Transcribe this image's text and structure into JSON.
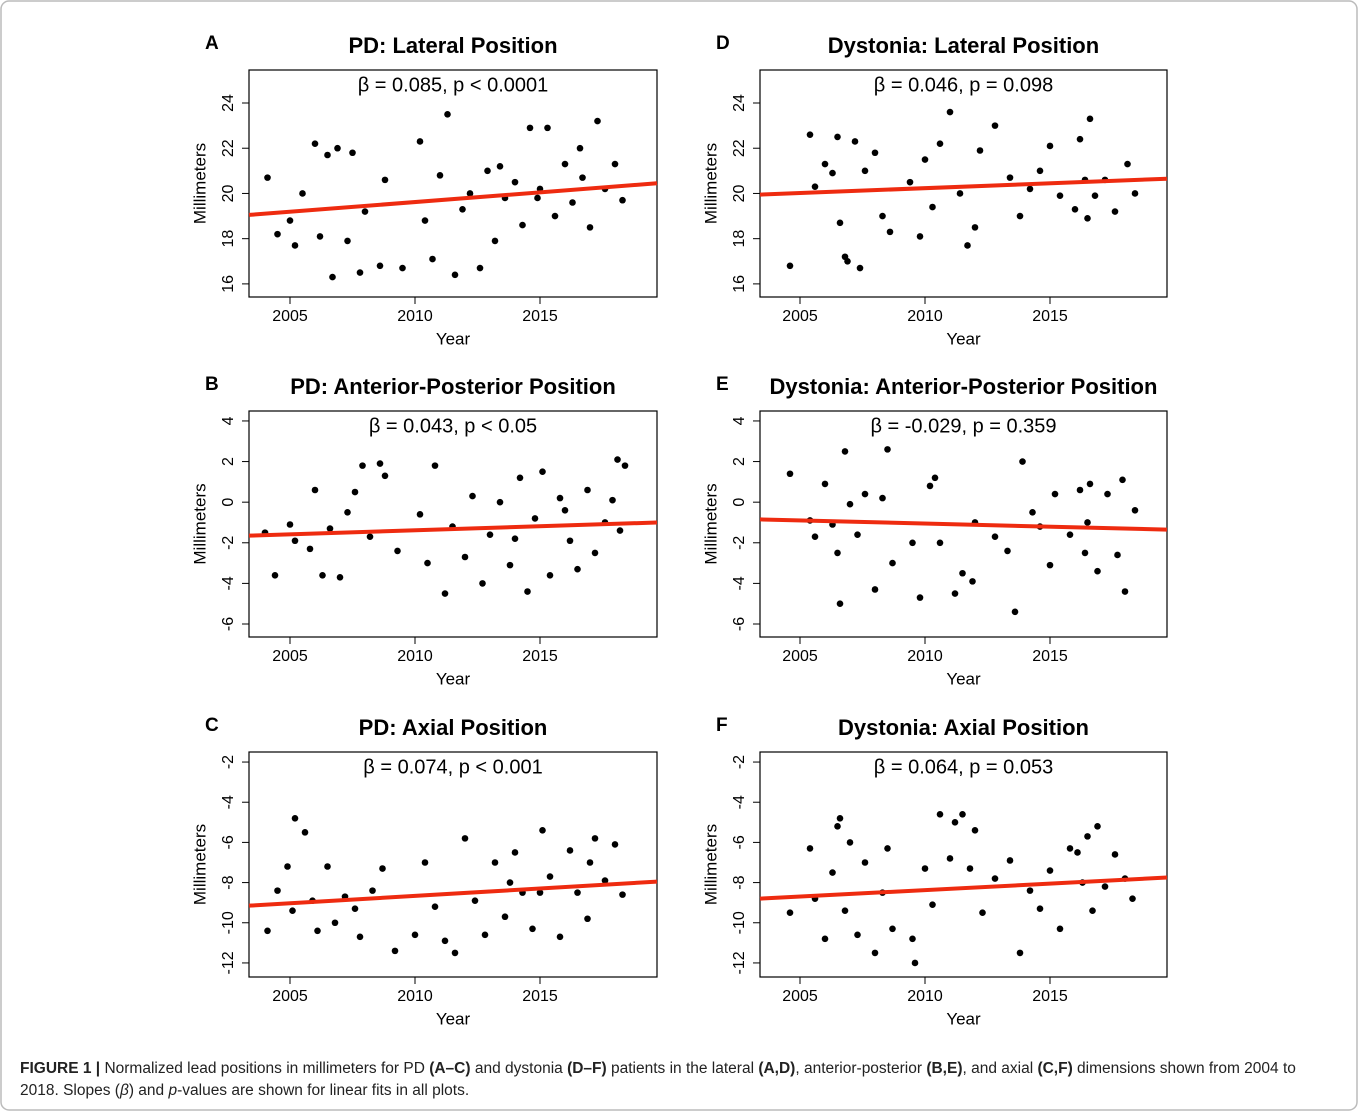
{
  "chart_data": [
    {
      "type": "scatter",
      "panel_label": "A",
      "title": "PD: Lateral Position",
      "annotation": "β = 0.085, p < 0.0001",
      "xlabel": "Year",
      "ylabel": "Millimeters",
      "color": "#000000",
      "xlim": [
        2003.36,
        2019.68
      ],
      "ylim": [
        15.42,
        25.46
      ],
      "xticks": [
        2005,
        2010,
        2015
      ],
      "yticks": [
        16,
        18,
        20,
        22,
        24
      ],
      "x": [
        2004.1,
        2004.5,
        2005.0,
        2005.2,
        2005.5,
        2006.0,
        2006.2,
        2006.5,
        2006.7,
        2006.9,
        2007.3,
        2007.5,
        2007.8,
        2008.0,
        2008.6,
        2008.8,
        2009.5,
        2010.2,
        2010.4,
        2010.7,
        2011.0,
        2011.3,
        2011.6,
        2011.9,
        2012.2,
        2012.6,
        2012.9,
        2013.2,
        2013.6,
        2014.0,
        2014.3,
        2014.6,
        2015.0,
        2015.3,
        2015.6,
        2016.0,
        2016.3,
        2016.7,
        2017.0,
        2017.3,
        2017.6,
        2018.0,
        2018.3,
        2016.6,
        2014.9,
        2013.4
      ],
      "y": [
        20.7,
        18.2,
        18.8,
        17.7,
        20.0,
        22.2,
        18.1,
        21.7,
        16.3,
        22.0,
        17.9,
        21.8,
        16.5,
        19.2,
        16.8,
        20.6,
        16.7,
        22.3,
        18.8,
        17.1,
        20.8,
        23.5,
        16.4,
        19.3,
        20.0,
        16.7,
        21.0,
        17.9,
        19.8,
        20.5,
        18.6,
        22.9,
        20.2,
        22.9,
        19.0,
        21.3,
        19.6,
        20.7,
        18.5,
        23.2,
        20.2,
        21.3,
        19.7,
        22.0,
        19.8,
        21.2
      ],
      "fit": {
        "color": "#ee2b10",
        "x": [
          2003.36,
          2019.68
        ],
        "y": [
          19.05,
          20.45
        ]
      }
    },
    {
      "type": "scatter",
      "panel_label": "B",
      "title": "PD: Anterior-Posterior Position",
      "annotation": "β = 0.043, p < 0.05",
      "xlabel": "Year",
      "ylabel": "Millimeters",
      "color": "#000000",
      "xlim": [
        2003.36,
        2019.68
      ],
      "ylim": [
        -6.64,
        4.49
      ],
      "xticks": [
        2005,
        2010,
        2015
      ],
      "yticks": [
        -6,
        -4,
        -2,
        0,
        2,
        4
      ],
      "x": [
        2004.0,
        2004.4,
        2005.0,
        2005.2,
        2005.8,
        2006.0,
        2006.3,
        2006.6,
        2007.0,
        2007.3,
        2007.6,
        2007.9,
        2008.2,
        2008.6,
        2008.8,
        2009.3,
        2010.2,
        2010.5,
        2010.8,
        2011.2,
        2011.5,
        2012.0,
        2012.3,
        2012.7,
        2013.0,
        2013.4,
        2013.8,
        2014.2,
        2014.5,
        2014.8,
        2015.1,
        2015.4,
        2015.8,
        2016.2,
        2016.5,
        2016.9,
        2017.2,
        2017.6,
        2017.9,
        2018.1,
        2018.4,
        2018.2,
        2016.0,
        2014.0
      ],
      "y": [
        -1.5,
        -3.6,
        -1.1,
        -1.9,
        -2.3,
        0.6,
        -3.6,
        -1.3,
        -3.7,
        -0.5,
        0.5,
        1.8,
        -1.7,
        1.9,
        1.3,
        -2.4,
        -0.6,
        -3.0,
        1.8,
        -4.5,
        -1.2,
        -2.7,
        0.3,
        -4.0,
        -1.6,
        0.0,
        -3.1,
        1.2,
        -4.4,
        -0.8,
        1.5,
        -3.6,
        0.2,
        -1.9,
        -3.3,
        0.6,
        -2.5,
        -1.0,
        0.1,
        2.1,
        1.8,
        -1.4,
        -0.4,
        -1.8
      ],
      "fit": {
        "color": "#ee2b10",
        "x": [
          2003.36,
          2019.68
        ],
        "y": [
          -1.65,
          -1.0
        ]
      }
    },
    {
      "type": "scatter",
      "panel_label": "C",
      "title": "PD: Axial Position",
      "annotation": "β = 0.074, p < 0.001",
      "xlabel": "Year",
      "ylabel": "Millimeters",
      "color": "#000000",
      "xlim": [
        2003.36,
        2019.68
      ],
      "ylim": [
        -12.7,
        -1.5
      ],
      "xticks": [
        2005,
        2010,
        2015
      ],
      "yticks": [
        -12,
        -10,
        -8,
        -6,
        -4,
        -2
      ],
      "x": [
        2004.1,
        2004.5,
        2004.9,
        2005.1,
        2005.2,
        2005.6,
        2005.9,
        2006.1,
        2006.5,
        2006.8,
        2007.2,
        2007.6,
        2007.8,
        2008.3,
        2008.7,
        2009.2,
        2010.0,
        2010.4,
        2010.8,
        2011.2,
        2011.6,
        2012.0,
        2012.4,
        2012.8,
        2013.2,
        2013.6,
        2014.0,
        2014.3,
        2014.7,
        2015.1,
        2015.4,
        2015.8,
        2016.2,
        2016.5,
        2016.9,
        2017.2,
        2017.6,
        2018.0,
        2018.3,
        2017.0,
        2015.0,
        2013.8
      ],
      "y": [
        -10.4,
        -8.4,
        -7.2,
        -9.4,
        -4.8,
        -5.5,
        -8.9,
        -10.4,
        -7.2,
        -10.0,
        -8.7,
        -9.3,
        -10.7,
        -8.4,
        -7.3,
        -11.4,
        -10.6,
        -7.0,
        -9.2,
        -10.9,
        -11.5,
        -5.8,
        -8.9,
        -10.6,
        -7.0,
        -9.7,
        -6.5,
        -8.5,
        -10.3,
        -5.4,
        -7.7,
        -10.7,
        -6.4,
        -8.5,
        -9.8,
        -5.8,
        -7.9,
        -6.1,
        -8.6,
        -7.0,
        -8.5,
        -8.0
      ],
      "fit": {
        "color": "#ee2b10",
        "x": [
          2003.36,
          2019.68
        ],
        "y": [
          -9.15,
          -7.95
        ]
      }
    },
    {
      "type": "scatter",
      "panel_label": "D",
      "title": "Dystonia: Lateral Position",
      "annotation": "β = 0.046, p = 0.098",
      "xlabel": "Year",
      "ylabel": "Millimeters",
      "color": "#000000",
      "xlim": [
        2003.4,
        2019.68
      ],
      "ylim": [
        15.42,
        25.46
      ],
      "xticks": [
        2005,
        2010,
        2015
      ],
      "yticks": [
        16,
        18,
        20,
        22,
        24
      ],
      "x": [
        2004.6,
        2005.4,
        2005.6,
        2006.0,
        2006.3,
        2006.5,
        2006.6,
        2006.8,
        2006.9,
        2007.2,
        2007.4,
        2007.6,
        2008.0,
        2008.3,
        2008.6,
        2009.4,
        2009.8,
        2010.0,
        2010.3,
        2010.6,
        2011.0,
        2011.4,
        2011.7,
        2012.0,
        2012.2,
        2012.8,
        2013.4,
        2013.8,
        2014.2,
        2014.6,
        2015.0,
        2015.4,
        2016.0,
        2016.2,
        2016.5,
        2016.6,
        2016.8,
        2017.2,
        2017.6,
        2018.1,
        2018.4,
        2016.4
      ],
      "y": [
        16.8,
        22.6,
        20.3,
        21.3,
        20.9,
        22.5,
        18.7,
        17.2,
        17.0,
        22.3,
        16.7,
        21.0,
        21.8,
        19.0,
        18.3,
        20.5,
        18.1,
        21.5,
        19.4,
        22.2,
        23.6,
        20.0,
        17.7,
        18.5,
        21.9,
        23.0,
        20.7,
        19.0,
        20.2,
        21.0,
        22.1,
        19.9,
        19.3,
        22.4,
        18.9,
        23.3,
        19.9,
        20.6,
        19.2,
        21.3,
        20.0,
        20.6
      ],
      "fit": {
        "color": "#ee2b10",
        "x": [
          2003.4,
          2019.68
        ],
        "y": [
          19.95,
          20.65
        ]
      }
    },
    {
      "type": "scatter",
      "panel_label": "E",
      "title": "Dystonia: Anterior-Posterior Position",
      "annotation": "β = -0.029, p = 0.359",
      "xlabel": "Year",
      "ylabel": "Millimeters",
      "color": "#000000",
      "xlim": [
        2003.4,
        2019.68
      ],
      "ylim": [
        -6.64,
        4.49
      ],
      "xticks": [
        2005,
        2010,
        2015
      ],
      "yticks": [
        -6,
        -4,
        -2,
        0,
        2,
        4
      ],
      "x": [
        2004.6,
        2005.4,
        2005.6,
        2006.0,
        2006.3,
        2006.5,
        2006.6,
        2006.8,
        2007.0,
        2007.3,
        2007.6,
        2008.0,
        2008.3,
        2008.5,
        2008.7,
        2009.5,
        2009.8,
        2010.2,
        2010.4,
        2010.6,
        2011.2,
        2011.5,
        2011.9,
        2012.0,
        2012.8,
        2013.3,
        2013.6,
        2013.9,
        2014.3,
        2014.6,
        2015.0,
        2015.2,
        2015.8,
        2016.2,
        2016.4,
        2016.6,
        2016.9,
        2017.3,
        2017.7,
        2017.9,
        2018.0,
        2018.4,
        2016.5
      ],
      "y": [
        1.4,
        -0.9,
        -1.7,
        0.9,
        -1.1,
        -2.5,
        -5.0,
        2.5,
        -0.1,
        -1.6,
        0.4,
        -4.3,
        0.2,
        2.6,
        -3.0,
        -2.0,
        -4.7,
        0.8,
        1.2,
        -2.0,
        -4.5,
        -3.5,
        -3.9,
        -1.0,
        -1.7,
        -2.4,
        -5.4,
        2.0,
        -0.5,
        -1.2,
        -3.1,
        0.4,
        -1.6,
        0.6,
        -2.5,
        0.9,
        -3.4,
        0.4,
        -2.6,
        1.1,
        -4.4,
        -0.4,
        -1.0
      ],
      "fit": {
        "color": "#ee2b10",
        "x": [
          2003.4,
          2019.68
        ],
        "y": [
          -0.85,
          -1.35
        ]
      }
    },
    {
      "type": "scatter",
      "panel_label": "F",
      "title": "Dystonia: Axial Position",
      "annotation": "β = 0.064, p = 0.053",
      "xlabel": "Year",
      "ylabel": "Millimeters",
      "color": "#000000",
      "xlim": [
        2003.4,
        2019.68
      ],
      "ylim": [
        -12.7,
        -1.5
      ],
      "xticks": [
        2005,
        2010,
        2015
      ],
      "yticks": [
        -12,
        -10,
        -8,
        -6,
        -4,
        -2
      ],
      "x": [
        2004.6,
        2005.4,
        2005.6,
        2006.0,
        2006.3,
        2006.5,
        2006.6,
        2006.8,
        2007.0,
        2007.3,
        2007.6,
        2008.0,
        2008.3,
        2008.5,
        2008.7,
        2009.5,
        2009.6,
        2010.0,
        2010.3,
        2010.6,
        2011.0,
        2011.2,
        2011.5,
        2011.8,
        2012.0,
        2012.3,
        2012.8,
        2013.4,
        2013.8,
        2014.2,
        2014.6,
        2015.0,
        2015.4,
        2015.8,
        2016.1,
        2016.3,
        2016.5,
        2016.7,
        2016.9,
        2017.2,
        2017.6,
        2018.0,
        2018.3
      ],
      "y": [
        -9.5,
        -6.3,
        -8.8,
        -10.8,
        -7.5,
        -5.2,
        -4.8,
        -9.4,
        -6.0,
        -10.6,
        -7.0,
        -11.5,
        -8.5,
        -6.3,
        -10.3,
        -10.8,
        -12.0,
        -7.3,
        -9.1,
        -4.6,
        -6.8,
        -5.0,
        -4.6,
        -7.3,
        -5.4,
        -9.5,
        -7.8,
        -6.9,
        -11.5,
        -8.4,
        -9.3,
        -7.4,
        -10.3,
        -6.3,
        -6.5,
        -8.0,
        -5.7,
        -9.4,
        -5.2,
        -8.2,
        -6.6,
        -7.8,
        -8.8
      ],
      "fit": {
        "color": "#ee2b10",
        "x": [
          2003.4,
          2019.68
        ],
        "y": [
          -8.8,
          -7.75
        ]
      }
    }
  ],
  "caption": [
    {
      "text": "FIGURE 1 | ",
      "bold": true
    },
    {
      "text": "Normalized lead positions in millimeters for PD "
    },
    {
      "text": "(A–C)",
      "bold": true
    },
    {
      "text": " and dystonia "
    },
    {
      "text": "(D–F)",
      "bold": true
    },
    {
      "text": " patients in the lateral "
    },
    {
      "text": "(A,D)",
      "bold": true
    },
    {
      "text": ", anterior-posterior "
    },
    {
      "text": "(B,E)",
      "bold": true
    },
    {
      "text": ", and axial "
    },
    {
      "text": "(C,F)",
      "bold": true
    },
    {
      "text": " dimensions shown from 2004 to 2018. Slopes ("
    },
    {
      "text": "β",
      "italic": true
    },
    {
      "text": ") and "
    },
    {
      "text": "p",
      "italic": true
    },
    {
      "text": "-values are shown for linear fits in all plots."
    }
  ]
}
